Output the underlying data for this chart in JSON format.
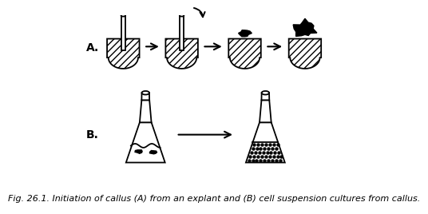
{
  "caption": "Fig. 26.1. Initiation of callus (A) from an explant and (B) cell suspension cultures from callus.",
  "caption_fontsize": 8.0,
  "bg_color": "#ffffff",
  "line_color": "#000000"
}
